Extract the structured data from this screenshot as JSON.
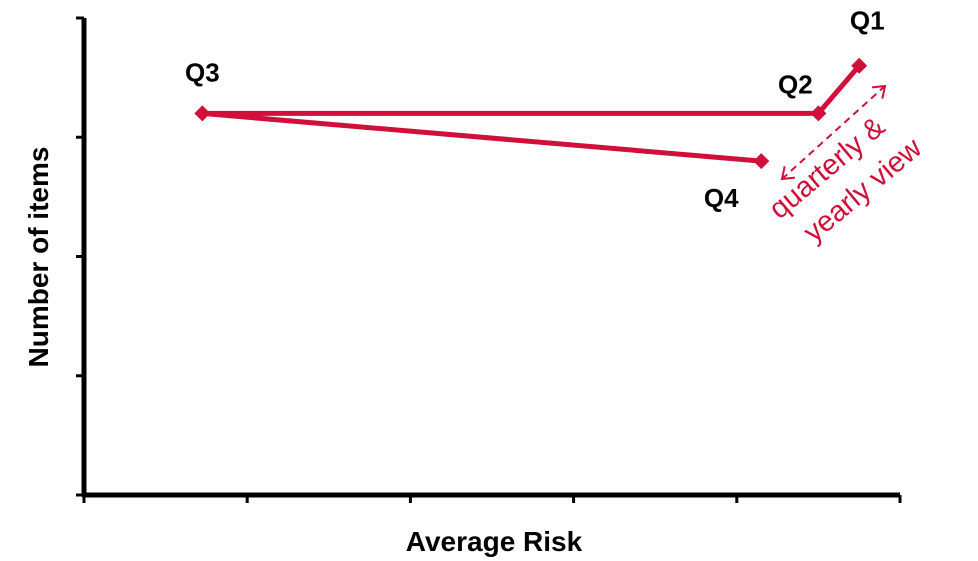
{
  "chart_data": {
    "type": "line",
    "xlabel": "Average Risk",
    "ylabel": "Number of items",
    "xlim": [
      0,
      100
    ],
    "ylim": [
      0,
      100
    ],
    "x_ticks": [
      0,
      20,
      40,
      60,
      80,
      100
    ],
    "y_ticks": [
      0,
      25,
      50,
      75,
      100
    ],
    "tick_labels_shown": false,
    "grid": false,
    "legend": "none",
    "series": [
      {
        "color": "#d0103a",
        "marker": "diamond",
        "points": [
          {
            "label": "Q1",
            "x": 95,
            "y": 90
          },
          {
            "label": "Q2",
            "x": 90,
            "y": 80
          },
          {
            "label": "Q3",
            "x": 14.5,
            "y": 80
          },
          {
            "label": "Q4",
            "x": 83,
            "y": 70
          }
        ]
      }
    ],
    "annotation": {
      "line1": "quarterly &",
      "line2": "yearly view",
      "color": "#d0103a",
      "arrow": "double-headed dashed"
    }
  }
}
